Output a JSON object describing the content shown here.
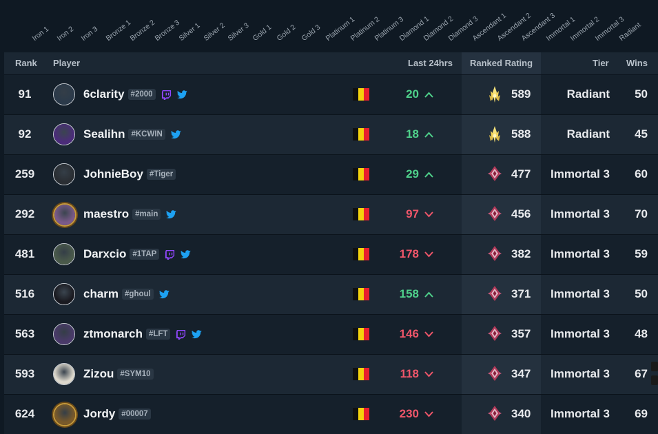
{
  "tier_filters": [
    "Iron 1",
    "Iron 2",
    "Iron 3",
    "Bronze 1",
    "Bronze 2",
    "Bronze 3",
    "Silver 1",
    "Silver 2",
    "Silver 3",
    "Gold 1",
    "Gold 2",
    "Gold 3",
    "Platinum 1",
    "Platinum 2",
    "Platinum 3",
    "Diamond 1",
    "Diamond 2",
    "Diamond 3",
    "Ascendant 1",
    "Ascendant 2",
    "Ascendant 3",
    "Immortal 1",
    "Immortal 2",
    "Immortal 3",
    "Radiant"
  ],
  "columns": {
    "rank": "Rank",
    "player": "Player",
    "last24": "Last 24hrs",
    "rating": "Ranked Rating",
    "tier": "Tier",
    "wins": "Wins"
  },
  "colors": {
    "background": "#0f1923",
    "up": "#4fd18b",
    "down": "#f0566a",
    "twitch": "#9147ff",
    "twitter": "#1da1f2"
  },
  "rows": [
    {
      "rank": "91",
      "name": "6clarity",
      "tag": "#2000",
      "twitch": true,
      "twitter": true,
      "delta": "20",
      "trend": "up",
      "rating": "589",
      "rank_icon": "radiant-icon",
      "tier": "Radiant",
      "wins": "50",
      "avatar": "#2b3a4a"
    },
    {
      "rank": "92",
      "name": "Sealihn",
      "tag": "#KCWIN",
      "twitch": false,
      "twitter": true,
      "delta": "18",
      "trend": "up",
      "rating": "588",
      "rank_icon": "radiant-icon",
      "tier": "Radiant",
      "wins": "45",
      "avatar": "#4b2c7a"
    },
    {
      "rank": "259",
      "name": "JohnieBoy",
      "tag": "#Tiger",
      "twitch": false,
      "twitter": false,
      "delta": "29",
      "trend": "up",
      "rating": "477",
      "rank_icon": "immortal-icon",
      "tier": "Immortal 3",
      "wins": "60",
      "avatar": "#2a2e33"
    },
    {
      "rank": "292",
      "name": "maestro",
      "tag": "#main",
      "twitch": false,
      "twitter": true,
      "delta": "97",
      "trend": "down",
      "rating": "456",
      "rank_icon": "immortal-icon",
      "tier": "Immortal 3",
      "wins": "70",
      "avatar": "#7a5a8a",
      "gold": true
    },
    {
      "rank": "481",
      "name": "Darxcio",
      "tag": "#1TAP",
      "twitch": true,
      "twitter": true,
      "delta": "178",
      "trend": "down",
      "rating": "382",
      "rank_icon": "immortal-icon",
      "tier": "Immortal 3",
      "wins": "59",
      "avatar": "#4a5a4a"
    },
    {
      "rank": "516",
      "name": "charm",
      "tag": "#ghoul",
      "twitch": false,
      "twitter": true,
      "delta": "158",
      "trend": "up",
      "rating": "371",
      "rank_icon": "immortal-icon",
      "tier": "Immortal 3",
      "wins": "50",
      "avatar": "#1a1a20"
    },
    {
      "rank": "563",
      "name": "ztmonarch",
      "tag": "#LFT",
      "twitch": true,
      "twitter": true,
      "delta": "146",
      "trend": "down",
      "rating": "357",
      "rank_icon": "immortal-icon",
      "tier": "Immortal 3",
      "wins": "48",
      "avatar": "#4a3a6a"
    },
    {
      "rank": "593",
      "name": "Zizou",
      "tag": "#SYM10",
      "twitch": false,
      "twitter": false,
      "delta": "118",
      "trend": "down",
      "rating": "347",
      "rank_icon": "immortal-icon",
      "tier": "Immortal 3",
      "wins": "67",
      "avatar": "#ddd8cc"
    },
    {
      "rank": "624",
      "name": "Jordy",
      "tag": "#00007",
      "twitch": false,
      "twitter": false,
      "delta": "230",
      "trend": "down",
      "rating": "340",
      "rank_icon": "immortal-icon",
      "tier": "Immortal 3",
      "wins": "69",
      "avatar": "#7a5a2a",
      "gold": true
    }
  ]
}
